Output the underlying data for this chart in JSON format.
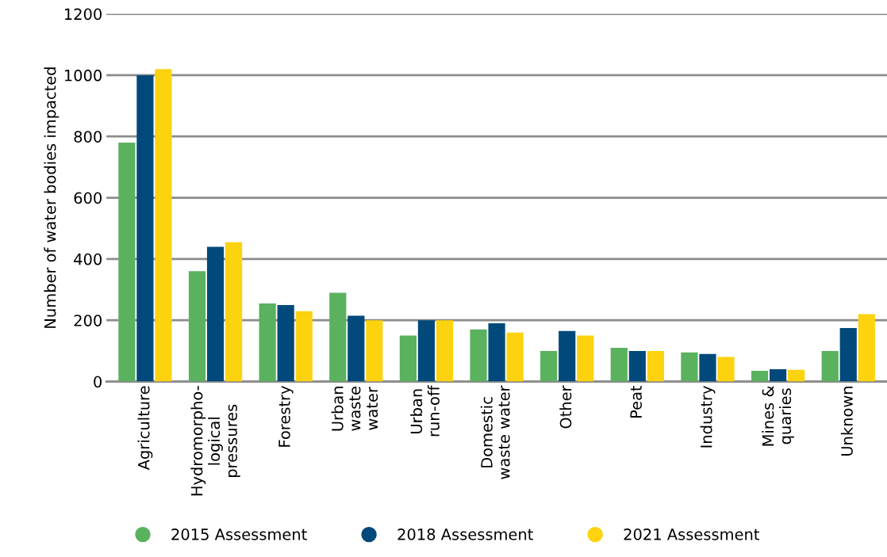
{
  "chart_data": {
    "type": "bar",
    "ylabel": "Number of water bodies impacted",
    "categories": [
      "Agriculture",
      "Hydromorpho-\nlogical\npressures",
      "Forestry",
      "Urban\nwaste\nwater",
      "Urban\nrun-off",
      "Domestic\nwaste water",
      "Other",
      "Peat",
      "Industry",
      "Mines &\nquaries",
      "Unknown"
    ],
    "series": [
      {
        "name": "2015 Assessment",
        "color": "#5ab15e",
        "values": [
          780,
          360,
          255,
          290,
          150,
          170,
          100,
          110,
          95,
          35,
          100
        ]
      },
      {
        "name": "2018 Assessment",
        "color": "#00497a",
        "values": [
          1000,
          440,
          250,
          215,
          200,
          190,
          165,
          100,
          90,
          40,
          175
        ]
      },
      {
        "name": "2021 Assessment",
        "color": "#fdd20f",
        "values": [
          1020,
          455,
          230,
          200,
          200,
          160,
          150,
          100,
          80,
          38,
          220
        ]
      }
    ],
    "ylim": [
      0,
      1200
    ],
    "yticks": [
      0,
      200,
      400,
      600,
      800,
      1000,
      1200
    ],
    "grid": "y",
    "legend": "bottom"
  }
}
